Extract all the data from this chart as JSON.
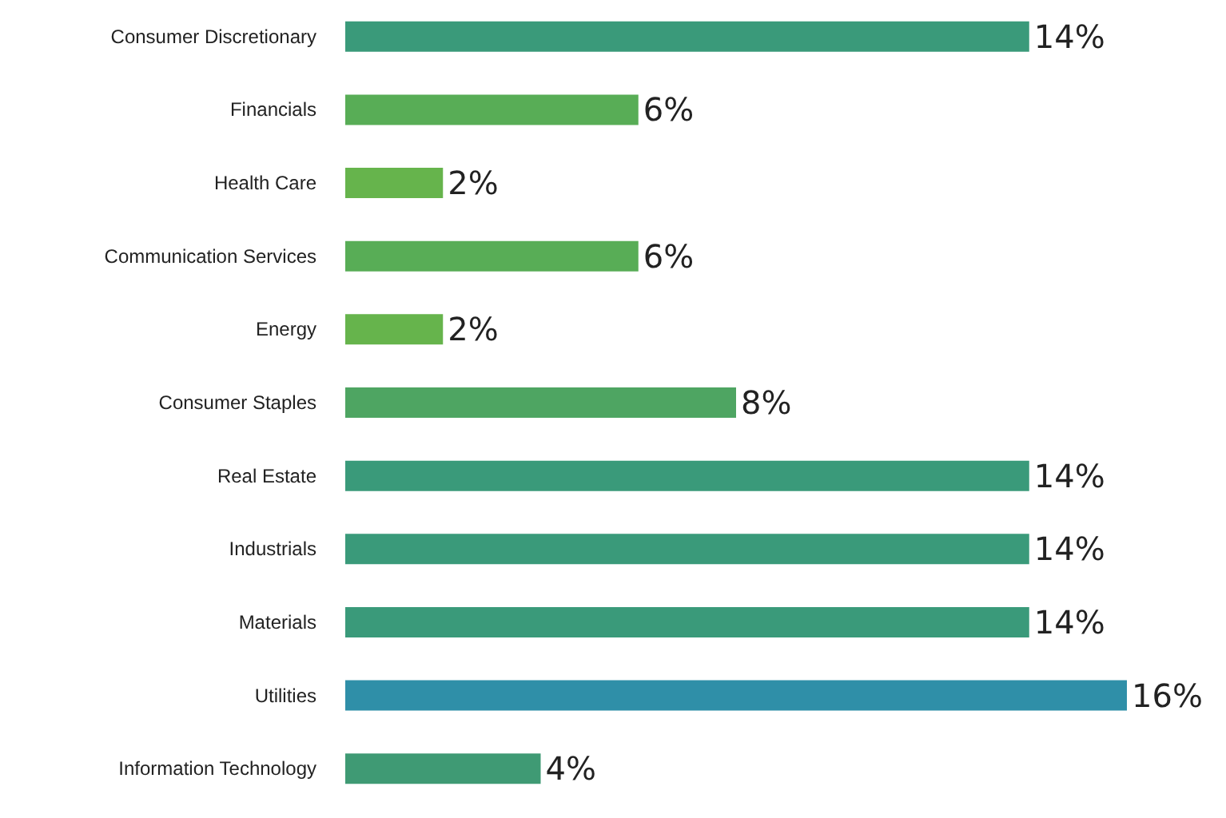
{
  "chart_data": {
    "type": "bar",
    "orientation": "horizontal",
    "categories": [
      "Consumer Discretionary",
      "Financials",
      "Health Care",
      "Communication Services",
      "Energy",
      "Consumer Staples",
      "Real Estate",
      "Industrials",
      "Materials",
      "Utilities",
      "Information Technology"
    ],
    "values": [
      14,
      6,
      2,
      6,
      2,
      8,
      14,
      14,
      14,
      16,
      4
    ],
    "value_labels": [
      "14%",
      "6%",
      "2%",
      "6%",
      "2%",
      "8%",
      "14%",
      "14%",
      "14%",
      "16%",
      "4%"
    ],
    "colors": [
      "#3a9a7a",
      "#58ad56",
      "#66b44c",
      "#58ad56",
      "#66b44c",
      "#4ea562",
      "#3a9a7a",
      "#3a9a7a",
      "#3a9a7a",
      "#2f8fa8",
      "#3f9a74"
    ]
  }
}
